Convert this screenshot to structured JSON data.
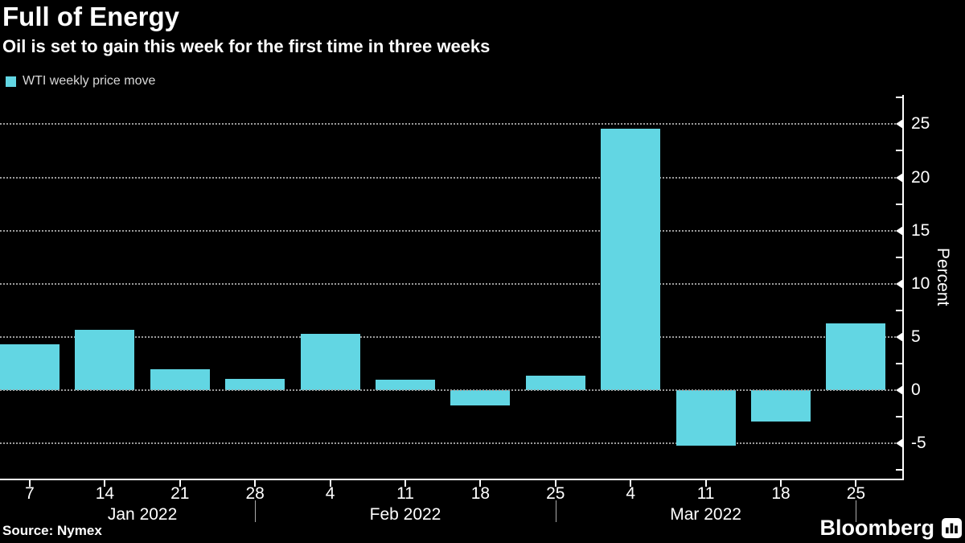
{
  "header": {
    "title": "Full of Energy",
    "subtitle": "Oil is set to gain this week for the first time in three weeks"
  },
  "legend": {
    "label": "WTI weekly price move"
  },
  "footer": {
    "source": "Source: Nymex",
    "brand": "Bloomberg",
    "brand_icon": "bar-chart-icon"
  },
  "colors": {
    "bar": "#62D6E3",
    "background": "#000000",
    "gridline": "#9B9B9B",
    "axis": "#FFFFFF",
    "legend_text": "#D9D9D9",
    "month_separator": "#AAAAAA"
  },
  "chart_data": {
    "type": "bar",
    "title": "Full of Energy",
    "series_name": "WTI weekly price move",
    "x_tick_labels": [
      "7",
      "14",
      "21",
      "28",
      "4",
      "11",
      "18",
      "25",
      "4",
      "11",
      "18",
      "25"
    ],
    "months": [
      {
        "label": "Jan 2022",
        "start_tick": 0,
        "end_tick": 3,
        "separator_tick": 3
      },
      {
        "label": "Feb 2022",
        "start_tick": 4,
        "end_tick": 6,
        "separator_tick": 7
      },
      {
        "label": "Mar 2022",
        "start_tick": 8,
        "end_tick": 10,
        "separator_tick": 11
      }
    ],
    "values": [
      4.3,
      5.7,
      2.0,
      1.1,
      5.3,
      1.0,
      -1.4,
      1.4,
      24.6,
      -5.2,
      -2.9,
      6.3
    ],
    "xlabel": "",
    "ylabel": "Percent",
    "ylim": [
      -8.3,
      27.6
    ],
    "y_axis": {
      "ticks": [
        25,
        20,
        15,
        10,
        5,
        0,
        -5
      ],
      "minor_step": 2.5,
      "minor_min": -7.5,
      "minor_max": 27.5
    },
    "grid": "horizontal dotted",
    "legend_position": "top-left"
  }
}
